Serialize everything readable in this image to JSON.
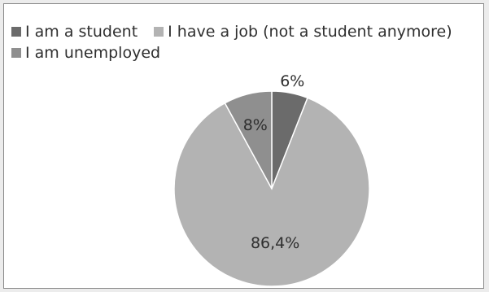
{
  "chart_data": {
    "type": "pie",
    "categories": [
      "I am a student",
      "I have a job (not a student anymore)",
      "I am unemployed"
    ],
    "values": [
      6,
      86.4,
      8
    ],
    "data_labels": [
      "6%",
      "86,4%",
      "8%"
    ],
    "colors": [
      "#6b6b6b",
      "#b3b3b3",
      "#8f8f8f"
    ],
    "legend_position": "top-left"
  }
}
